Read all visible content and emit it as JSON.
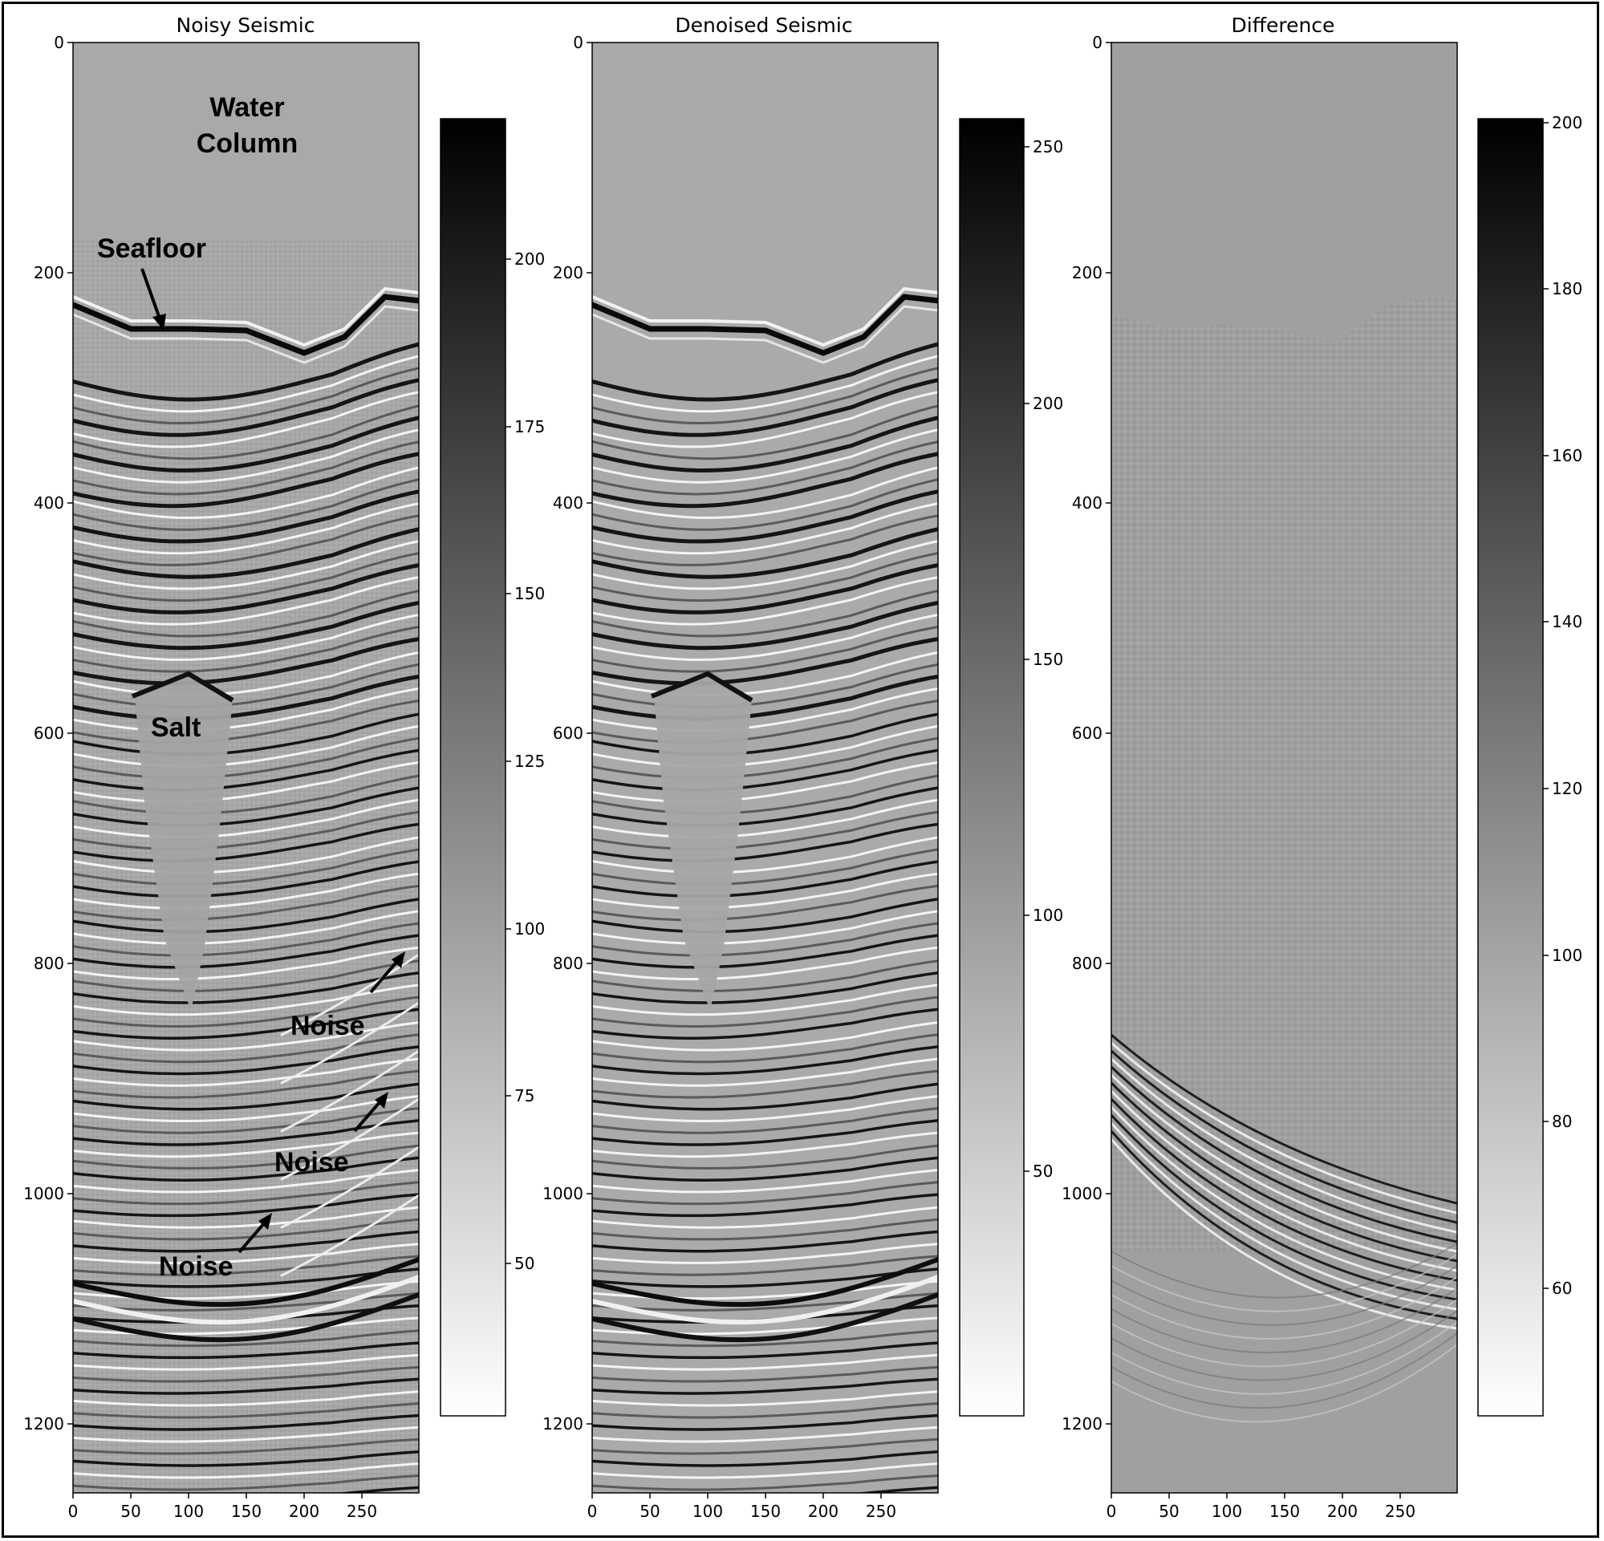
{
  "panels": [
    {
      "title": "Noisy Seismic",
      "y_ticks": [
        "0",
        "200",
        "400",
        "600",
        "800",
        "1000",
        "1200"
      ],
      "x_ticks": [
        "0",
        "50",
        "100",
        "150",
        "200",
        "250"
      ],
      "colorbar_ticks": [
        "200",
        "175",
        "150",
        "125",
        "100",
        "75",
        "50"
      ]
    },
    {
      "title": "Denoised Seismic",
      "y_ticks": [
        "0",
        "200",
        "400",
        "600",
        "800",
        "1000",
        "1200"
      ],
      "x_ticks": [
        "0",
        "50",
        "100",
        "150",
        "200",
        "250"
      ],
      "colorbar_ticks": [
        "250",
        "200",
        "150",
        "100",
        "50"
      ]
    },
    {
      "title": "Difference",
      "y_ticks": [
        "0",
        "200",
        "400",
        "600",
        "800",
        "1000",
        "1200"
      ],
      "x_ticks": [
        "0",
        "50",
        "100",
        "150",
        "200",
        "250"
      ],
      "colorbar_ticks": [
        "200",
        "180",
        "160",
        "140",
        "120",
        "100",
        "80",
        "60"
      ]
    }
  ],
  "annotations": {
    "water_line1": "Water",
    "water_line2": "Column",
    "seafloor": "Seafloor",
    "salt": "Salt",
    "noise1": "Noise",
    "noise2": "Noise",
    "noise3": "Noise"
  }
}
